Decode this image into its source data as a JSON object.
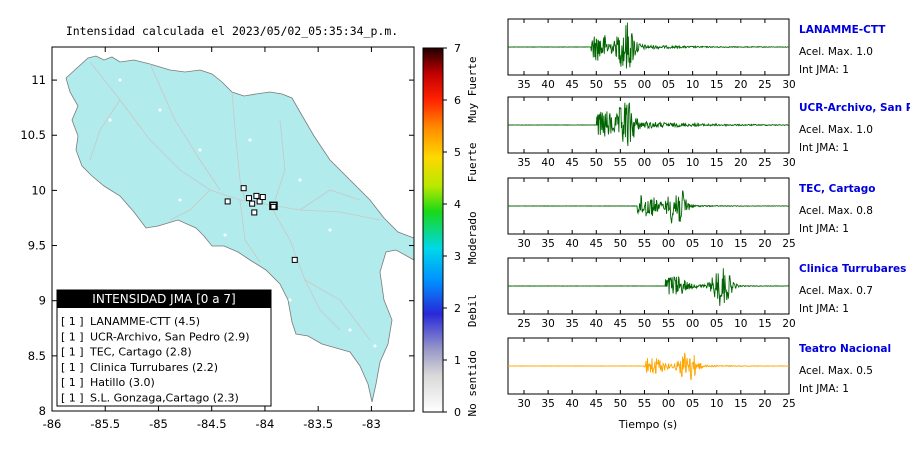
{
  "chart_data": [
    {
      "type": "heatmap",
      "title": "Intensidad calculada el 2023/05/02_05:35:34_p.m.",
      "xlim": [
        -86,
        -82.6
      ],
      "ylim": [
        8,
        11.3
      ],
      "x_ticks": [
        "-86",
        "-85.5",
        "-85",
        "-84.5",
        "-84",
        "-83.5",
        "-83"
      ],
      "y_ticks": [
        "8",
        "8.5",
        "9",
        "9.5",
        "10",
        "10.5",
        "11"
      ],
      "colorbar": {
        "min": 0,
        "max": 7,
        "ticks": [
          "0",
          "1",
          "2",
          "3",
          "4",
          "5",
          "6",
          "7"
        ],
        "labels": [
          "No sentido",
          "Debil",
          "Moderado",
          "Fuerte",
          "Muy Fuerte"
        ]
      },
      "legend": {
        "title": "INTENSIDAD JMA [0 a 7]",
        "placement": "bottom-left",
        "items": [
          {
            "prefix": "[ 1 ]",
            "label": "LANAMME-CTT (4.5)"
          },
          {
            "prefix": "[ 1 ]",
            "label": "UCR-Archivo, San Pedro (2.9)"
          },
          {
            "prefix": "[ 1 ]",
            "label": "TEC, Cartago (2.8)"
          },
          {
            "prefix": "[ 1 ]",
            "label": "Clinica Turrubares (2.2)"
          },
          {
            "prefix": "[ 1 ]",
            "label": "Hatillo (3.0)"
          },
          {
            "prefix": "[ 1 ]",
            "label": "S.L. Gonzaga,Cartago (2.3)"
          }
        ]
      },
      "stations": [
        {
          "x": -84.35,
          "y": 9.9
        },
        {
          "x": -84.2,
          "y": 10.02
        },
        {
          "x": -84.15,
          "y": 9.93
        },
        {
          "x": -84.12,
          "y": 9.88
        },
        {
          "x": -84.08,
          "y": 9.95
        },
        {
          "x": -84.05,
          "y": 9.9
        },
        {
          "x": -84.02,
          "y": 9.94
        },
        {
          "x": -84.1,
          "y": 9.8
        },
        {
          "x": -83.92,
          "y": 9.85
        },
        {
          "x": -83.72,
          "y": 9.37
        }
      ],
      "epicenter": {
        "x": -83.92,
        "y": 9.86
      }
    },
    {
      "type": "line",
      "xlabel": "Tiempo (s)",
      "traces": [
        {
          "name": "LANAMME-CTT",
          "accel_label": "Acel. Max. 1.0",
          "jma_label": "Int JMA: 1",
          "color": "#006400",
          "ticks": [
            "35",
            "40",
            "45",
            "50",
            "55",
            "00",
            "05",
            "10",
            "15",
            "20",
            "25",
            "30"
          ],
          "onset": 0.295,
          "peak": 0.42,
          "amp": 1.0,
          "decay": 0.13
        },
        {
          "name": "UCR-Archivo, San Pedro",
          "accel_label": "Acel. Max. 1.0",
          "jma_label": "Int JMA: 1",
          "color": "#006400",
          "ticks": [
            "35",
            "40",
            "45",
            "50",
            "55",
            "00",
            "05",
            "10",
            "15",
            "20",
            "25",
            "30"
          ],
          "onset": 0.315,
          "peak": 0.42,
          "amp": 1.0,
          "decay": 0.17
        },
        {
          "name": "TEC, Cartago",
          "accel_label": "Acel. Max. 0.8",
          "jma_label": "Int JMA: 1",
          "color": "#006400",
          "ticks": [
            "30",
            "35",
            "40",
            "45",
            "50",
            "55",
            "00",
            "05",
            "10",
            "15",
            "20",
            "25"
          ],
          "onset": 0.46,
          "peak": 0.6,
          "amp": 0.8,
          "decay": 0.08
        },
        {
          "name": "Clinica Turrubares",
          "accel_label": "Acel. Max. 0.7",
          "jma_label": "Int JMA: 1",
          "color": "#006400",
          "ticks": [
            "25",
            "30",
            "35",
            "40",
            "45",
            "50",
            "55",
            "00",
            "05",
            "10",
            "15",
            "20"
          ],
          "onset": 0.56,
          "peak": 0.76,
          "amp": 0.7,
          "decay": 0.08
        },
        {
          "name": "Teatro Nacional",
          "accel_label": "Acel. Max. 0.5",
          "jma_label": "Int JMA: 1",
          "color": "#ffa500",
          "ticks": [
            "30",
            "35",
            "40",
            "45",
            "50",
            "55",
            "00",
            "05",
            "10",
            "15",
            "20",
            "25"
          ],
          "onset": 0.485,
          "peak": 0.64,
          "amp": 0.5,
          "decay": 0.1
        }
      ]
    }
  ]
}
